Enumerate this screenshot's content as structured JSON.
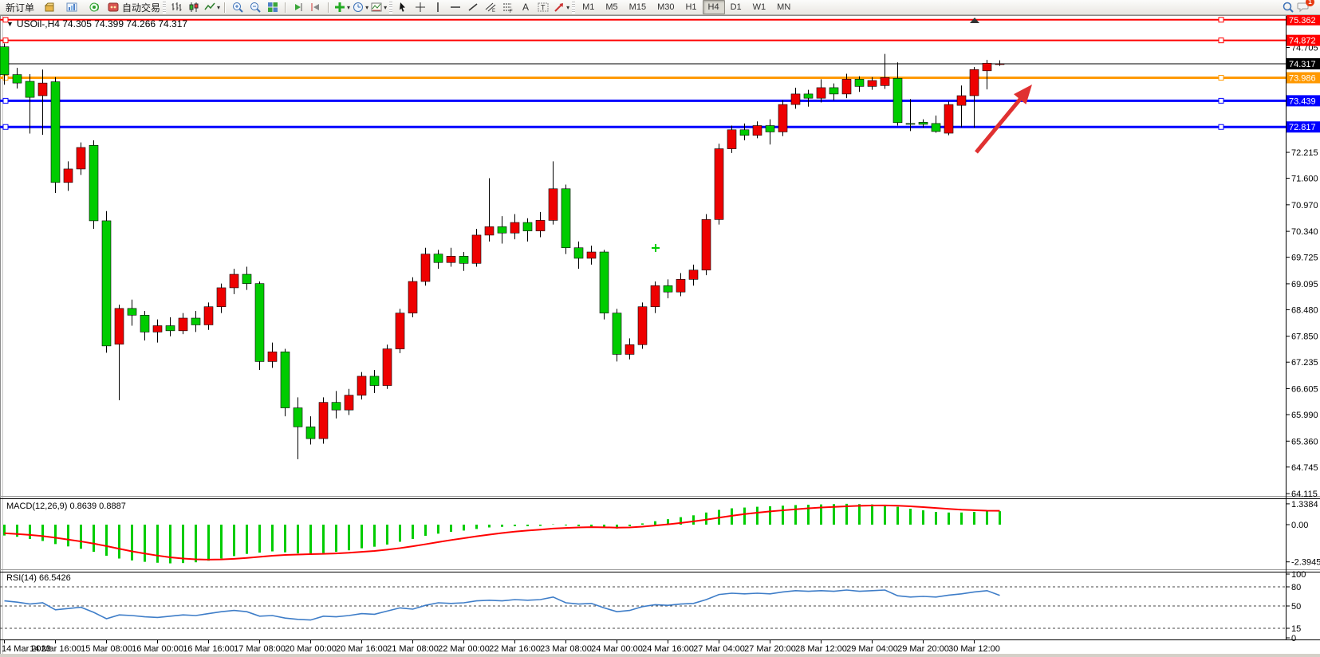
{
  "toolbar": {
    "new_order_label": "新订单",
    "autotrading_label": "自动交易",
    "icons_left": [
      "gold-cube-icon",
      "market-watch-icon",
      "signals-icon"
    ],
    "chart_type_icons": [
      "bar-chart-icon",
      "candlestick-icon",
      "line-chart-icon"
    ],
    "zoom_icons": [
      "zoom-in-icon",
      "zoom-out-icon",
      "tile-windows-icon"
    ],
    "scroll_icons": [
      "auto-scroll-icon",
      "chart-shift-icon"
    ],
    "tool_icons": [
      "indicators-icon",
      "periods-icon",
      "templates-icon"
    ],
    "object_icons": [
      "cursor-icon",
      "crosshair-icon",
      "vertical-line-icon",
      "horizontal-line-icon",
      "trendline-icon",
      "channel-icon",
      "fibonacci-icon",
      "text-icon",
      "text-label-icon",
      "arrows-icon"
    ],
    "right_icons": [
      "search-icon",
      "notifications-icon"
    ],
    "timeframes": [
      "M1",
      "M5",
      "M15",
      "M30",
      "H1",
      "H4",
      "D1",
      "W1",
      "MN"
    ],
    "active_timeframe": "H4",
    "notification_count": "1"
  },
  "chart": {
    "title": "USOil-,H4  74.305 74.399 74.266 74.317",
    "symbol": "USOil-",
    "period": "H4",
    "open": "74.305",
    "high": "74.399",
    "low": "74.266",
    "close": "74.317"
  },
  "indicators": {
    "macd_label": "MACD(12,26,9) 0.8639 0.8887",
    "macd_axis": [
      "1.3384",
      "0.00",
      "-2.3945"
    ],
    "rsi_label": "RSI(14) 66.5426",
    "rsi_axis": [
      "100",
      "80",
      "50",
      "15",
      "0"
    ]
  },
  "chart_data": {
    "type": "candlestick",
    "title": "USOil- H4",
    "ylabel": "price",
    "ylim": [
      64.115,
      75.47
    ],
    "grid": false,
    "price_ticks": [
      74.705,
      72.215,
      71.6,
      70.97,
      70.34,
      69.725,
      69.095,
      68.48,
      67.85,
      67.235,
      66.605,
      65.99,
      65.36,
      64.745,
      64.115
    ],
    "time_labels": [
      "14 Mar 2023",
      "14 Mar 16:00",
      "15 Mar 08:00",
      "16 Mar 00:00",
      "16 Mar 16:00",
      "17 Mar 08:00",
      "20 Mar 00:00",
      "20 Mar 16:00",
      "21 Mar 08:00",
      "22 Mar 00:00",
      "22 Mar 16:00",
      "23 Mar 08:00",
      "24 Mar 00:00",
      "24 Mar 16:00",
      "27 Mar 04:00",
      "27 Mar 20:00",
      "28 Mar 12:00",
      "29 Mar 04:00",
      "29 Mar 20:00",
      "30 Mar 12:00"
    ],
    "hlines": [
      {
        "value": "75.362",
        "price": 75.362,
        "color": "#FF0000",
        "width": 2
      },
      {
        "value": "74.872",
        "price": 74.872,
        "color": "#FF0000",
        "width": 2
      },
      {
        "value": "73.986",
        "price": 73.986,
        "color": "#FF9900",
        "width": 3
      },
      {
        "value": "73.439",
        "price": 73.439,
        "color": "#0000FF",
        "width": 3
      },
      {
        "value": "72.817",
        "price": 72.817,
        "color": "#0000FF",
        "width": 3
      }
    ],
    "current_price": {
      "value": "74.317",
      "price": 74.317,
      "label_bg": "#000000"
    },
    "up_color": "#EE0000",
    "down_color": "#00CC00",
    "candles": [
      [
        74.72,
        74.8,
        73.82,
        74.06
      ],
      [
        74.06,
        74.22,
        73.73,
        73.86
      ],
      [
        73.9,
        74.07,
        72.66,
        73.52
      ],
      [
        73.56,
        74.18,
        72.63,
        73.86
      ],
      [
        73.89,
        74.0,
        71.25,
        71.5
      ],
      [
        71.5,
        72.0,
        71.3,
        71.82
      ],
      [
        71.82,
        72.45,
        71.68,
        72.33
      ],
      [
        72.38,
        72.5,
        70.4,
        70.59
      ],
      [
        70.59,
        70.82,
        67.46,
        67.62
      ],
      [
        67.66,
        68.6,
        66.33,
        68.51
      ],
      [
        68.51,
        68.72,
        68.1,
        68.35
      ],
      [
        68.35,
        68.45,
        67.75,
        67.95
      ],
      [
        67.95,
        68.25,
        67.7,
        68.1
      ],
      [
        68.1,
        68.3,
        67.85,
        67.98
      ],
      [
        67.98,
        68.4,
        67.9,
        68.28
      ],
      [
        68.28,
        68.45,
        67.95,
        68.12
      ],
      [
        68.12,
        68.65,
        68.0,
        68.55
      ],
      [
        68.55,
        69.1,
        68.4,
        69.0
      ],
      [
        69.0,
        69.45,
        68.85,
        69.32
      ],
      [
        69.32,
        69.5,
        68.95,
        69.1
      ],
      [
        69.1,
        69.15,
        67.05,
        67.25
      ],
      [
        67.25,
        67.7,
        67.1,
        67.48
      ],
      [
        67.48,
        67.55,
        65.95,
        66.15
      ],
      [
        66.15,
        66.4,
        64.93,
        65.7
      ],
      [
        65.7,
        65.95,
        65.28,
        65.42
      ],
      [
        65.42,
        66.4,
        65.3,
        66.28
      ],
      [
        66.28,
        66.55,
        65.9,
        66.1
      ],
      [
        66.1,
        66.6,
        65.98,
        66.45
      ],
      [
        66.45,
        67.0,
        66.35,
        66.9
      ],
      [
        66.9,
        67.05,
        66.5,
        66.68
      ],
      [
        66.68,
        67.65,
        66.6,
        67.55
      ],
      [
        67.55,
        68.5,
        67.45,
        68.4
      ],
      [
        68.4,
        69.25,
        68.3,
        69.15
      ],
      [
        69.15,
        69.95,
        69.05,
        69.8
      ],
      [
        69.8,
        69.9,
        69.45,
        69.6
      ],
      [
        69.6,
        69.95,
        69.5,
        69.75
      ],
      [
        69.75,
        69.85,
        69.4,
        69.58
      ],
      [
        69.58,
        70.4,
        69.5,
        70.25
      ],
      [
        70.25,
        71.6,
        70.1,
        70.45
      ],
      [
        70.45,
        70.7,
        70.05,
        70.3
      ],
      [
        70.3,
        70.75,
        70.15,
        70.55
      ],
      [
        70.55,
        70.65,
        70.1,
        70.35
      ],
      [
        70.35,
        70.8,
        70.2,
        70.6
      ],
      [
        70.6,
        72.0,
        70.5,
        71.35
      ],
      [
        71.35,
        71.45,
        69.8,
        69.95
      ],
      [
        69.95,
        70.1,
        69.45,
        69.7
      ],
      [
        69.7,
        70.0,
        69.55,
        69.85
      ],
      [
        69.85,
        69.9,
        68.25,
        68.4
      ],
      [
        68.4,
        68.5,
        67.25,
        67.42
      ],
      [
        67.42,
        67.8,
        67.3,
        67.65
      ],
      [
        67.65,
        68.65,
        67.55,
        68.55
      ],
      [
        68.55,
        69.15,
        68.4,
        69.05
      ],
      [
        69.05,
        69.2,
        68.75,
        68.9
      ],
      [
        68.9,
        69.35,
        68.8,
        69.2
      ],
      [
        69.2,
        69.55,
        69.05,
        69.42
      ],
      [
        69.42,
        70.75,
        69.3,
        70.62
      ],
      [
        70.62,
        72.42,
        70.5,
        72.3
      ],
      [
        72.3,
        72.85,
        72.2,
        72.75
      ],
      [
        72.75,
        72.9,
        72.5,
        72.62
      ],
      [
        72.62,
        72.95,
        72.55,
        72.85
      ],
      [
        72.85,
        73.0,
        72.4,
        72.7
      ],
      [
        72.7,
        73.45,
        72.6,
        73.35
      ],
      [
        73.35,
        73.75,
        73.25,
        73.6
      ],
      [
        73.6,
        73.7,
        73.3,
        73.5
      ],
      [
        73.5,
        73.95,
        73.4,
        73.75
      ],
      [
        73.75,
        73.85,
        73.45,
        73.6
      ],
      [
        73.6,
        74.08,
        73.5,
        73.95
      ],
      [
        73.95,
        74.02,
        73.65,
        73.78
      ],
      [
        73.78,
        74.0,
        73.7,
        73.92
      ],
      [
        73.8,
        74.55,
        73.72,
        73.99
      ],
      [
        73.97,
        74.35,
        72.85,
        72.92
      ],
      [
        72.9,
        73.48,
        72.72,
        72.88
      ],
      [
        72.93,
        73.0,
        72.8,
        72.88
      ],
      [
        72.9,
        73.09,
        72.68,
        72.71
      ],
      [
        72.67,
        73.42,
        72.62,
        73.35
      ],
      [
        73.33,
        73.8,
        72.81,
        73.56
      ],
      [
        73.56,
        74.24,
        72.8,
        74.18
      ],
      [
        74.15,
        74.41,
        73.71,
        74.33
      ],
      [
        74.305,
        74.399,
        74.266,
        74.317
      ]
    ],
    "macd": {
      "label": "MACD(12,26,9)",
      "value_main": 0.8639,
      "value_signal": 0.8887,
      "axis_max": 1.3384,
      "axis_min": -2.3945,
      "histogram_color": "#00CC00",
      "signal_color": "#FF0000",
      "histogram": [
        -0.7,
        -0.78,
        -0.92,
        -1.05,
        -1.25,
        -1.4,
        -1.55,
        -1.75,
        -2.0,
        -2.18,
        -2.3,
        -2.39,
        -2.45,
        -2.49,
        -2.47,
        -2.42,
        -2.32,
        -2.18,
        -2.02,
        -1.88,
        -1.8,
        -1.72,
        -1.78,
        -1.85,
        -1.88,
        -1.82,
        -1.75,
        -1.65,
        -1.52,
        -1.42,
        -1.28,
        -1.1,
        -0.92,
        -0.72,
        -0.58,
        -0.46,
        -0.38,
        -0.28,
        -0.18,
        -0.14,
        -0.1,
        -0.1,
        -0.08,
        0.02,
        -0.05,
        -0.1,
        -0.12,
        -0.2,
        -0.25,
        -0.1,
        0.08,
        0.22,
        0.35,
        0.48,
        0.6,
        0.78,
        0.95,
        1.05,
        1.1,
        1.15,
        1.18,
        1.22,
        1.26,
        1.28,
        1.3,
        1.32,
        1.34,
        1.32,
        1.3,
        1.28,
        1.15,
        1.02,
        0.92,
        0.82,
        0.78,
        0.78,
        0.82,
        0.85,
        0.8639
      ],
      "signal": [
        -0.55,
        -0.6,
        -0.66,
        -0.74,
        -0.84,
        -0.96,
        -1.08,
        -1.22,
        -1.38,
        -1.55,
        -1.72,
        -1.86,
        -1.99,
        -2.1,
        -2.18,
        -2.23,
        -2.25,
        -2.24,
        -2.2,
        -2.14,
        -2.07,
        -2.0,
        -1.95,
        -1.92,
        -1.9,
        -1.88,
        -1.85,
        -1.81,
        -1.75,
        -1.69,
        -1.61,
        -1.51,
        -1.39,
        -1.26,
        -1.12,
        -0.99,
        -0.87,
        -0.75,
        -0.64,
        -0.54,
        -0.45,
        -0.38,
        -0.32,
        -0.25,
        -0.21,
        -0.18,
        -0.16,
        -0.17,
        -0.19,
        -0.18,
        -0.13,
        -0.06,
        0.02,
        0.11,
        0.21,
        0.32,
        0.45,
        0.57,
        0.68,
        0.77,
        0.85,
        0.92,
        0.99,
        1.05,
        1.1,
        1.14,
        1.18,
        1.21,
        1.23,
        1.24,
        1.22,
        1.18,
        1.13,
        1.07,
        1.01,
        0.96,
        0.93,
        0.9,
        0.8887
      ]
    },
    "rsi": {
      "label": "RSI(14)",
      "value": 66.5426,
      "levels": [
        80,
        50,
        15
      ],
      "line_color": "#3E7DC8",
      "values": [
        58,
        56,
        53,
        55,
        44,
        46,
        48,
        40,
        30,
        36,
        35,
        33,
        32,
        34,
        36,
        35,
        38,
        41,
        43,
        41,
        34,
        35,
        31,
        29,
        28,
        34,
        33,
        35,
        38,
        37,
        42,
        47,
        45,
        51,
        55,
        54,
        55,
        58,
        59,
        58,
        60,
        59,
        60,
        64,
        55,
        53,
        54,
        47,
        41,
        43,
        49,
        52,
        51,
        53,
        54,
        60,
        68,
        70,
        69,
        70,
        69,
        72,
        74,
        73,
        74,
        73,
        75,
        73,
        74,
        75,
        66,
        64,
        65,
        64,
        67,
        69,
        72,
        74,
        66.54
      ],
      "axis_labels": [
        100,
        80,
        50,
        15,
        0
      ]
    },
    "annotations": {
      "arrow": {
        "color": "#E03131",
        "tail": [
          1224,
          191
        ],
        "tip": [
          1294,
          106
        ]
      },
      "plus_marker": {
        "color": "#00CC00",
        "x": 822,
        "y": 311
      },
      "shift_marker_x": 1222
    }
  }
}
